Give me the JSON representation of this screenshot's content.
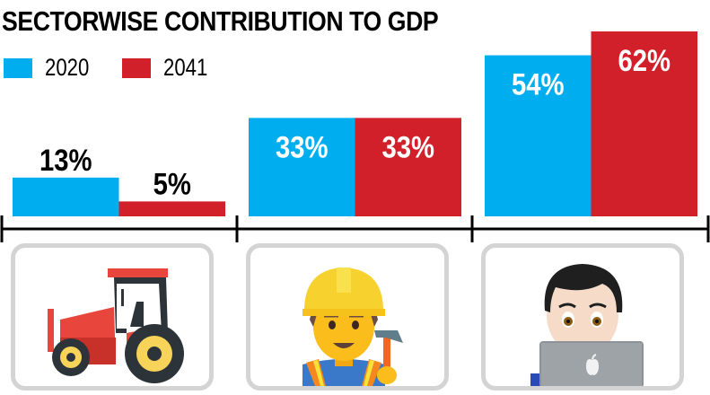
{
  "chart_data": {
    "type": "bar",
    "title": "SECTORWISE CONTRIBUTION TO GDP",
    "categories": [
      "Agriculture",
      "Industry",
      "Services"
    ],
    "series": [
      {
        "name": "2020",
        "color": "#00aeef",
        "values": [
          13,
          33,
          54
        ],
        "labels": [
          "13%",
          "33%",
          "54%"
        ]
      },
      {
        "name": "2041",
        "color": "#d2202a",
        "values": [
          5,
          33,
          62
        ],
        "labels": [
          "5%",
          "33%",
          "62%"
        ]
      }
    ],
    "ylim": [
      0,
      62
    ],
    "xlabel": "",
    "ylabel": "",
    "grid": false,
    "legend_position": "top-left",
    "category_icons": [
      "tractor-icon",
      "construction-worker-icon",
      "technologist-icon"
    ]
  }
}
